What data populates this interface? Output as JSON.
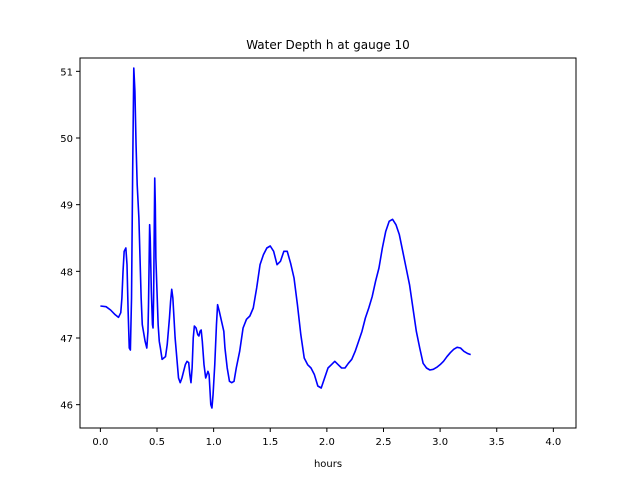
{
  "chart_data": {
    "type": "line",
    "title": "Water Depth h at gauge 10",
    "xlabel": "hours",
    "ylabel": "",
    "xlim": [
      -0.18,
      4.2
    ],
    "ylim": [
      45.65,
      51.2
    ],
    "xticks": [
      0.0,
      0.5,
      1.0,
      1.5,
      2.0,
      2.5,
      3.0,
      3.5,
      4.0
    ],
    "xtick_labels": [
      "0.0",
      "0.5",
      "1.0",
      "1.5",
      "2.0",
      "2.5",
      "3.0",
      "3.5",
      "4.0"
    ],
    "yticks": [
      46,
      47,
      48,
      49,
      50,
      51
    ],
    "ytick_labels": [
      "46",
      "47",
      "48",
      "49",
      "50",
      "51"
    ],
    "grid": false,
    "line_color": "#0000ff",
    "series": [
      {
        "points": [
          [
            0.0,
            47.48
          ],
          [
            0.05,
            47.47
          ],
          [
            0.09,
            47.42
          ],
          [
            0.13,
            47.35
          ],
          [
            0.16,
            47.31
          ],
          [
            0.18,
            47.38
          ],
          [
            0.19,
            47.6
          ],
          [
            0.2,
            48.0
          ],
          [
            0.21,
            48.3
          ],
          [
            0.225,
            48.35
          ],
          [
            0.235,
            48.1
          ],
          [
            0.245,
            47.4
          ],
          [
            0.255,
            46.85
          ],
          [
            0.265,
            46.82
          ],
          [
            0.275,
            47.6
          ],
          [
            0.285,
            49.5
          ],
          [
            0.295,
            51.05
          ],
          [
            0.305,
            50.7
          ],
          [
            0.315,
            49.9
          ],
          [
            0.325,
            49.3
          ],
          [
            0.34,
            48.8
          ],
          [
            0.35,
            48.2
          ],
          [
            0.36,
            47.6
          ],
          [
            0.37,
            47.2
          ],
          [
            0.38,
            47.1
          ],
          [
            0.395,
            46.95
          ],
          [
            0.41,
            46.85
          ],
          [
            0.42,
            47.1
          ],
          [
            0.425,
            47.5
          ],
          [
            0.43,
            48.1
          ],
          [
            0.435,
            48.7
          ],
          [
            0.44,
            48.5
          ],
          [
            0.45,
            47.7
          ],
          [
            0.46,
            47.2
          ],
          [
            0.465,
            47.15
          ],
          [
            0.47,
            47.6
          ],
          [
            0.475,
            48.5
          ],
          [
            0.48,
            49.4
          ],
          [
            0.485,
            49.0
          ],
          [
            0.49,
            48.2
          ],
          [
            0.5,
            47.7
          ],
          [
            0.51,
            47.2
          ],
          [
            0.52,
            46.95
          ],
          [
            0.53,
            46.85
          ],
          [
            0.545,
            46.68
          ],
          [
            0.56,
            46.7
          ],
          [
            0.575,
            46.72
          ],
          [
            0.59,
            46.9
          ],
          [
            0.6,
            47.1
          ],
          [
            0.61,
            47.3
          ],
          [
            0.62,
            47.55
          ],
          [
            0.63,
            47.73
          ],
          [
            0.64,
            47.6
          ],
          [
            0.65,
            47.3
          ],
          [
            0.66,
            47.0
          ],
          [
            0.67,
            46.8
          ],
          [
            0.68,
            46.6
          ],
          [
            0.69,
            46.4
          ],
          [
            0.705,
            46.33
          ],
          [
            0.72,
            46.4
          ],
          [
            0.735,
            46.5
          ],
          [
            0.75,
            46.6
          ],
          [
            0.765,
            46.65
          ],
          [
            0.78,
            46.63
          ],
          [
            0.79,
            46.45
          ],
          [
            0.8,
            46.33
          ],
          [
            0.81,
            46.55
          ],
          [
            0.82,
            47.0
          ],
          [
            0.83,
            47.18
          ],
          [
            0.845,
            47.15
          ],
          [
            0.86,
            47.05
          ],
          [
            0.87,
            47.03
          ],
          [
            0.88,
            47.1
          ],
          [
            0.89,
            47.12
          ],
          [
            0.9,
            46.95
          ],
          [
            0.915,
            46.6
          ],
          [
            0.93,
            46.4
          ],
          [
            0.94,
            46.45
          ],
          [
            0.95,
            46.5
          ],
          [
            0.96,
            46.45
          ],
          [
            0.975,
            46.0
          ],
          [
            0.985,
            45.95
          ],
          [
            0.995,
            46.15
          ],
          [
            1.01,
            46.6
          ],
          [
            1.025,
            47.2
          ],
          [
            1.035,
            47.5
          ],
          [
            1.05,
            47.4
          ],
          [
            1.07,
            47.25
          ],
          [
            1.09,
            47.1
          ],
          [
            1.1,
            46.85
          ],
          [
            1.12,
            46.55
          ],
          [
            1.14,
            46.35
          ],
          [
            1.16,
            46.33
          ],
          [
            1.18,
            46.35
          ],
          [
            1.2,
            46.55
          ],
          [
            1.23,
            46.8
          ],
          [
            1.26,
            47.15
          ],
          [
            1.29,
            47.28
          ],
          [
            1.32,
            47.33
          ],
          [
            1.35,
            47.45
          ],
          [
            1.38,
            47.75
          ],
          [
            1.41,
            48.1
          ],
          [
            1.44,
            48.25
          ],
          [
            1.47,
            48.35
          ],
          [
            1.5,
            48.38
          ],
          [
            1.53,
            48.3
          ],
          [
            1.56,
            48.1
          ],
          [
            1.59,
            48.15
          ],
          [
            1.62,
            48.3
          ],
          [
            1.65,
            48.3
          ],
          [
            1.68,
            48.12
          ],
          [
            1.71,
            47.9
          ],
          [
            1.74,
            47.5
          ],
          [
            1.77,
            47.05
          ],
          [
            1.8,
            46.7
          ],
          [
            1.83,
            46.6
          ],
          [
            1.86,
            46.55
          ],
          [
            1.89,
            46.45
          ],
          [
            1.92,
            46.28
          ],
          [
            1.95,
            46.25
          ],
          [
            1.98,
            46.4
          ],
          [
            2.01,
            46.55
          ],
          [
            2.04,
            46.6
          ],
          [
            2.07,
            46.65
          ],
          [
            2.1,
            46.6
          ],
          [
            2.13,
            46.55
          ],
          [
            2.16,
            46.55
          ],
          [
            2.19,
            46.62
          ],
          [
            2.22,
            46.68
          ],
          [
            2.25,
            46.8
          ],
          [
            2.28,
            46.95
          ],
          [
            2.31,
            47.1
          ],
          [
            2.34,
            47.3
          ],
          [
            2.37,
            47.45
          ],
          [
            2.4,
            47.62
          ],
          [
            2.43,
            47.85
          ],
          [
            2.46,
            48.05
          ],
          [
            2.49,
            48.35
          ],
          [
            2.52,
            48.6
          ],
          [
            2.55,
            48.75
          ],
          [
            2.58,
            48.78
          ],
          [
            2.61,
            48.7
          ],
          [
            2.64,
            48.55
          ],
          [
            2.67,
            48.3
          ],
          [
            2.7,
            48.05
          ],
          [
            2.73,
            47.8
          ],
          [
            2.76,
            47.45
          ],
          [
            2.79,
            47.1
          ],
          [
            2.82,
            46.85
          ],
          [
            2.85,
            46.62
          ],
          [
            2.88,
            46.55
          ],
          [
            2.91,
            46.52
          ],
          [
            2.94,
            46.53
          ],
          [
            2.97,
            46.56
          ],
          [
            3.0,
            46.6
          ],
          [
            3.03,
            46.65
          ],
          [
            3.06,
            46.72
          ],
          [
            3.09,
            46.78
          ],
          [
            3.12,
            46.83
          ],
          [
            3.15,
            46.86
          ],
          [
            3.18,
            46.85
          ],
          [
            3.21,
            46.8
          ],
          [
            3.24,
            46.77
          ],
          [
            3.27,
            46.75
          ]
        ]
      }
    ]
  }
}
